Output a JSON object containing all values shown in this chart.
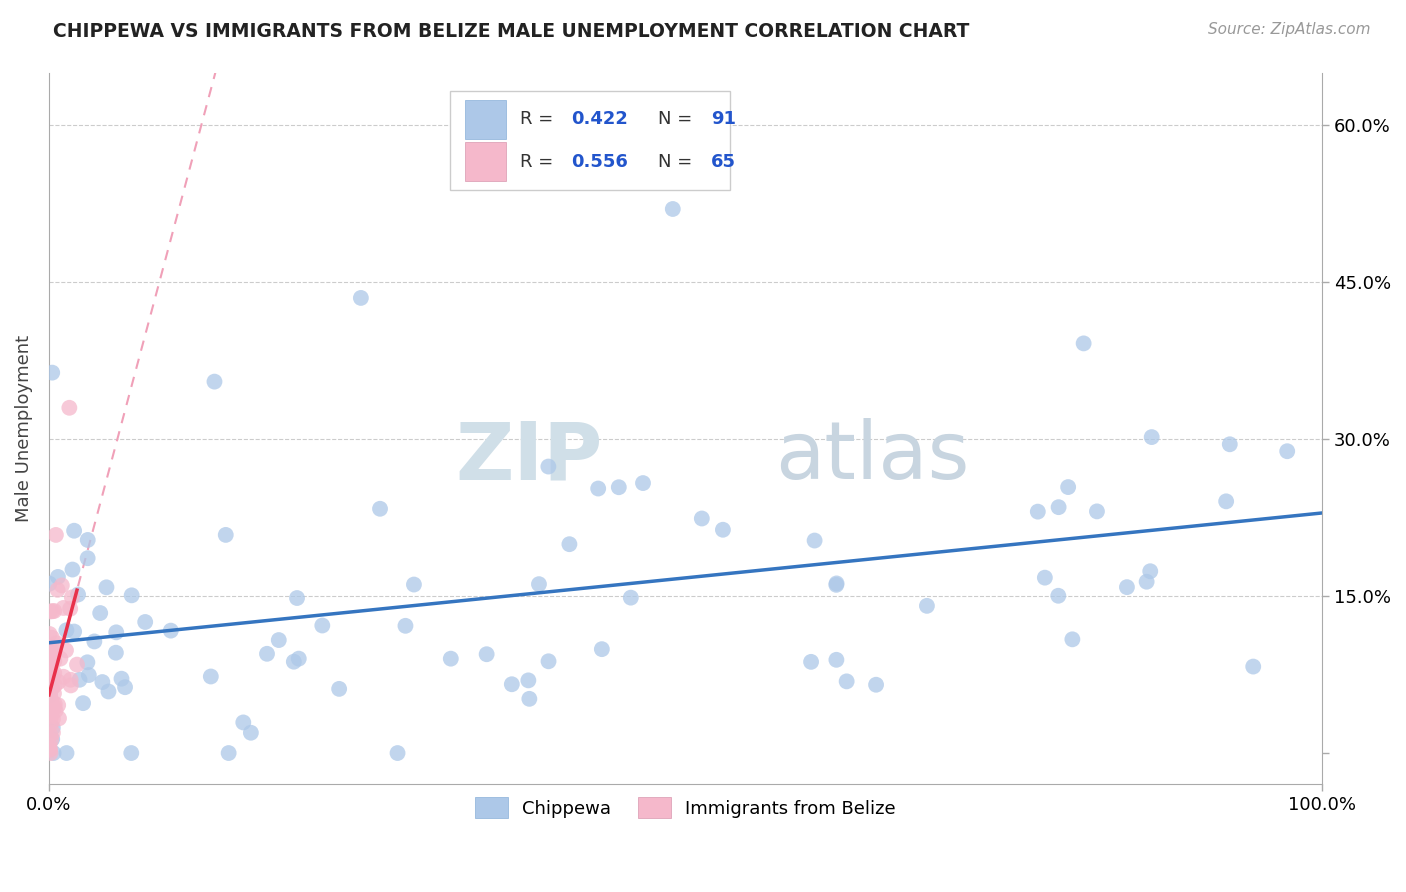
{
  "title": "CHIPPEWA VS IMMIGRANTS FROM BELIZE MALE UNEMPLOYMENT CORRELATION CHART",
  "source": "Source: ZipAtlas.com",
  "ylabel": "Male Unemployment",
  "xlim": [
    0.0,
    1.0
  ],
  "ylim": [
    -0.03,
    0.65
  ],
  "y_tick_positions": [
    0.0,
    0.15,
    0.3,
    0.45,
    0.6
  ],
  "y_tick_labels": [
    "",
    "15.0%",
    "30.0%",
    "45.0%",
    "60.0%"
  ],
  "chippewa_R": 0.422,
  "chippewa_N": 91,
  "belize_R": 0.556,
  "belize_N": 65,
  "chippewa_color": "#adc8e8",
  "chippewa_line_color": "#3575c0",
  "belize_color": "#f5b8cb",
  "belize_line_color": "#e8304a",
  "belize_dash_color": "#f0a0b8",
  "watermark_zip_color": "#d0dfe8",
  "watermark_atlas_color": "#c8d5e0",
  "legend_label_color": "#2255cc",
  "legend_text_color": "#333333",
  "grid_color": "#cccccc",
  "title_color": "#222222",
  "source_color": "#999999"
}
